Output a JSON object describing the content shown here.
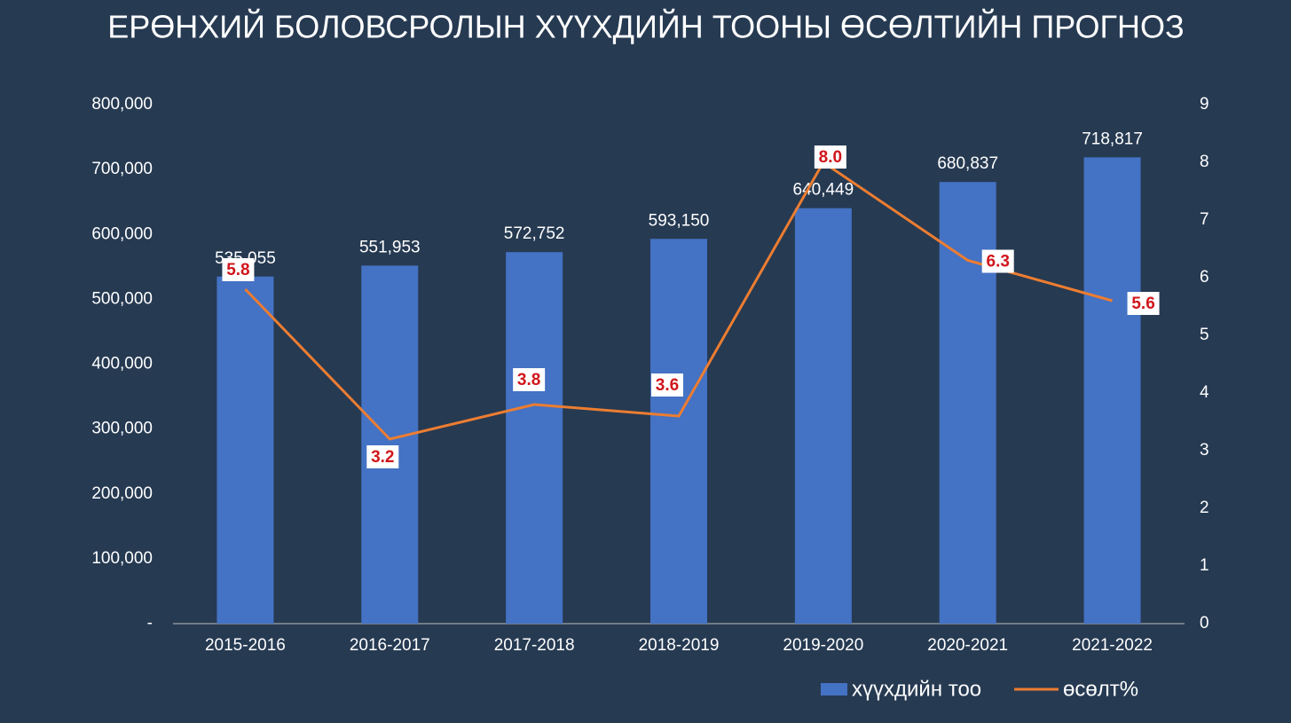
{
  "chart_data": {
    "type": "bar-line",
    "title": "ЕРӨНХИЙ БОЛОВСРОЛЫН ХҮҮХДИЙН ТООНЫ ӨСӨЛТИЙН ПРОГНОЗ",
    "categories": [
      "2015-2016",
      "2016-2017",
      "2017-2018",
      "2018-2019",
      "2019-2020",
      "2020-2021",
      "2021-2022"
    ],
    "series": [
      {
        "name": "хүүхдийн тоо",
        "type": "bar",
        "color": "#4472c4",
        "values": [
          535055,
          551953,
          572752,
          593150,
          640449,
          680837,
          718817
        ],
        "value_labels": [
          "535,055",
          "551,953",
          "572,752",
          "593,150",
          "640,449",
          "680,837",
          "718,817"
        ]
      },
      {
        "name": "өсөлт%",
        "type": "line",
        "axis": "y2",
        "color": "#ed7d31",
        "values": [
          5.8,
          3.2,
          3.8,
          3.6,
          8.0,
          6.3,
          5.6
        ],
        "value_labels": [
          "5.8",
          "3.2",
          "3.8",
          "3.6",
          "8.0",
          "6.3",
          "5.6"
        ]
      }
    ],
    "ylim": [
      0,
      800000
    ],
    "yticks": [
      {
        "value": 0,
        "label": "-"
      },
      {
        "value": 100000,
        "label": "100,000"
      },
      {
        "value": 200000,
        "label": "200,000"
      },
      {
        "value": 300000,
        "label": "300,000"
      },
      {
        "value": 400000,
        "label": "400,000"
      },
      {
        "value": 500000,
        "label": "500,000"
      },
      {
        "value": 600000,
        "label": "600,000"
      },
      {
        "value": 700000,
        "label": "700,000"
      },
      {
        "value": 800000,
        "label": "800,000"
      }
    ],
    "y2lim": [
      0,
      9
    ],
    "y2ticks": [
      0,
      1,
      2,
      3,
      4,
      5,
      6,
      7,
      8,
      9
    ],
    "grid": false,
    "legend": "bottom"
  }
}
